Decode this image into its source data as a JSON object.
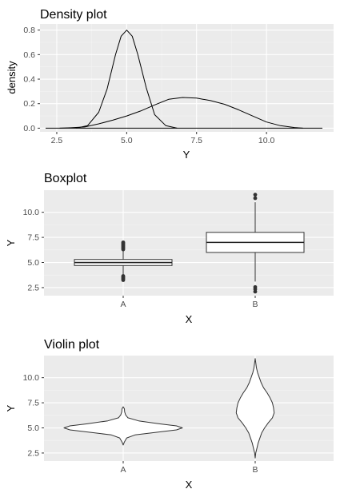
{
  "chart_data": [
    {
      "type": "line",
      "title": "Density plot",
      "xlabel": "Y",
      "ylabel": "density",
      "xlim": [
        1.9,
        12.4
      ],
      "ylim": [
        -0.03,
        0.85
      ],
      "x_ticks": [
        2.5,
        5.0,
        7.5,
        10.0
      ],
      "x_tick_labels": [
        "2.5",
        "5.0",
        "7.5",
        "10.0"
      ],
      "y_ticks": [
        0.0,
        0.2,
        0.4,
        0.6,
        0.8
      ],
      "y_tick_labels": [
        "0.0",
        "0.2",
        "0.4",
        "0.6",
        "0.8"
      ],
      "grid": true,
      "baseline_range": [
        2.1,
        12.0
      ],
      "series": [
        {
          "x": [
            3.2,
            3.6,
            4.0,
            4.3,
            4.6,
            4.8,
            5.0,
            5.2,
            5.4,
            5.7,
            6.0,
            6.4,
            6.8
          ],
          "y": [
            0.0,
            0.02,
            0.13,
            0.32,
            0.6,
            0.75,
            0.8,
            0.75,
            0.6,
            0.33,
            0.11,
            0.02,
            0.0
          ]
        },
        {
          "x": [
            2.6,
            3.0,
            3.5,
            4.0,
            4.5,
            5.0,
            5.5,
            6.0,
            6.5,
            7.0,
            7.5,
            8.0,
            8.5,
            9.0,
            9.5,
            10.0,
            10.5,
            11.0,
            11.3
          ],
          "y": [
            0.0,
            0.003,
            0.01,
            0.035,
            0.065,
            0.1,
            0.14,
            0.19,
            0.235,
            0.25,
            0.245,
            0.225,
            0.195,
            0.15,
            0.1,
            0.05,
            0.02,
            0.005,
            0.0
          ]
        }
      ]
    },
    {
      "type": "box",
      "title": "Boxplot",
      "xlabel": "X",
      "ylabel": "Y",
      "categories": [
        "A",
        "B"
      ],
      "ylim": [
        1.7,
        12.2
      ],
      "y_ticks": [
        2.5,
        5.0,
        7.5,
        10.0
      ],
      "y_tick_labels": [
        "2.5",
        "5.0",
        "7.5",
        "10.0"
      ],
      "grid": true,
      "boxes": [
        {
          "q1": 4.7,
          "median": 5.0,
          "q3": 5.3,
          "whisker_low": 3.8,
          "whisker_high": 6.2,
          "outliers": [
            3.25,
            3.35,
            3.45,
            3.55,
            3.65,
            6.3,
            6.4,
            6.5,
            6.6,
            6.7,
            6.8,
            6.9,
            7.0
          ]
        },
        {
          "q1": 6.0,
          "median": 7.0,
          "q3": 8.0,
          "whisker_low": 3.1,
          "whisker_high": 11.0,
          "outliers": [
            2.1,
            2.35,
            2.55,
            11.4,
            11.75
          ]
        }
      ]
    },
    {
      "type": "violin",
      "title": "Violin plot",
      "xlabel": "X",
      "ylabel": "Y",
      "categories": [
        "A",
        "B"
      ],
      "ylim": [
        1.7,
        12.2
      ],
      "y_ticks": [
        2.5,
        5.0,
        7.5,
        10.0
      ],
      "y_tick_labels": [
        "2.5",
        "5.0",
        "7.5",
        "10.0"
      ],
      "grid": true,
      "violins": [
        {
          "y": [
            3.3,
            3.6,
            4.0,
            4.3,
            4.6,
            4.8,
            5.0,
            5.2,
            5.4,
            5.7,
            6.0,
            6.3,
            6.6,
            6.9,
            7.1
          ],
          "width": [
            0.0,
            0.02,
            0.06,
            0.2,
            0.62,
            0.9,
            1.0,
            0.9,
            0.62,
            0.26,
            0.08,
            0.04,
            0.025,
            0.02,
            0.0
          ]
        },
        {
          "y": [
            2.0,
            2.5,
            3.0,
            3.5,
            4.0,
            4.5,
            5.0,
            5.5,
            6.0,
            6.5,
            7.0,
            7.5,
            8.0,
            8.5,
            9.0,
            9.5,
            10.0,
            10.5,
            11.0,
            11.5,
            11.9
          ],
          "width": [
            0.0,
            0.01,
            0.03,
            0.05,
            0.08,
            0.11,
            0.16,
            0.22,
            0.29,
            0.32,
            0.31,
            0.29,
            0.25,
            0.2,
            0.14,
            0.1,
            0.07,
            0.04,
            0.02,
            0.01,
            0.0
          ]
        }
      ]
    }
  ]
}
